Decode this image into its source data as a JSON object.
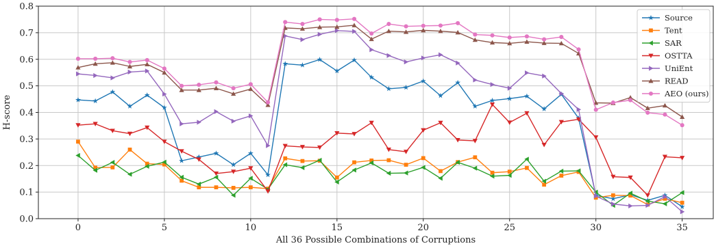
{
  "chart_data": {
    "type": "line",
    "title": "",
    "xlabel": "All 36 Possible Combinations of Corruptions",
    "ylabel": "H-score",
    "xlim": [
      -2.3,
      36.8
    ],
    "ylim": [
      0.0,
      0.8
    ],
    "xticks": [
      0,
      5,
      10,
      15,
      20,
      25,
      30,
      35
    ],
    "yticks": [
      0.0,
      0.1,
      0.2,
      0.3,
      0.4,
      0.5,
      0.6,
      0.7,
      0.8
    ],
    "grid": true,
    "legend_position": "top-right",
    "x": [
      0,
      1,
      2,
      3,
      4,
      5,
      6,
      7,
      8,
      9,
      10,
      11,
      12,
      13,
      14,
      15,
      16,
      17,
      18,
      19,
      20,
      21,
      22,
      23,
      24,
      25,
      26,
      27,
      28,
      29,
      30,
      31,
      32,
      33,
      34,
      35
    ],
    "series": [
      {
        "name": "Source",
        "color": "#1f77b4",
        "marker": "star",
        "values": [
          0.447,
          0.443,
          0.477,
          0.423,
          0.465,
          0.418,
          0.218,
          0.232,
          0.246,
          0.203,
          0.246,
          0.165,
          0.583,
          0.578,
          0.599,
          0.556,
          0.597,
          0.532,
          0.489,
          0.494,
          0.518,
          0.463,
          0.512,
          0.423,
          0.445,
          0.452,
          0.461,
          0.413,
          0.468,
          0.378,
          0.088,
          0.075,
          0.09,
          0.069,
          0.088,
          0.045
        ]
      },
      {
        "name": "Tent",
        "color": "#ff7f0e",
        "marker": "square",
        "values": [
          0.29,
          0.192,
          0.193,
          0.26,
          0.207,
          0.204,
          0.143,
          0.118,
          0.118,
          0.116,
          0.118,
          0.113,
          0.227,
          0.217,
          0.218,
          0.155,
          0.212,
          0.219,
          0.22,
          0.203,
          0.228,
          0.179,
          0.213,
          0.231,
          0.173,
          0.177,
          0.191,
          0.128,
          0.162,
          0.176,
          0.079,
          0.088,
          0.087,
          0.053,
          0.075,
          0.06
        ]
      },
      {
        "name": "SAR",
        "color": "#2ca02c",
        "marker": "triangle-left",
        "values": [
          0.238,
          0.182,
          0.212,
          0.167,
          0.197,
          0.213,
          0.156,
          0.13,
          0.156,
          0.088,
          0.152,
          0.111,
          0.203,
          0.192,
          0.22,
          0.138,
          0.183,
          0.21,
          0.171,
          0.172,
          0.193,
          0.152,
          0.212,
          0.19,
          0.16,
          0.163,
          0.224,
          0.141,
          0.179,
          0.18,
          0.1,
          0.05,
          0.096,
          0.066,
          0.056,
          0.098
        ]
      },
      {
        "name": "OSTTA",
        "color": "#d62728",
        "marker": "triangle-down",
        "values": [
          0.352,
          0.357,
          0.331,
          0.32,
          0.343,
          0.29,
          0.254,
          0.223,
          0.17,
          0.177,
          0.19,
          0.103,
          0.274,
          0.27,
          0.268,
          0.322,
          0.319,
          0.361,
          0.26,
          0.252,
          0.333,
          0.361,
          0.296,
          0.293,
          0.43,
          0.362,
          0.397,
          0.278,
          0.364,
          0.374,
          0.306,
          0.158,
          0.155,
          0.088,
          0.233,
          0.229
        ]
      },
      {
        "name": "UniEnt",
        "color": "#9467bd",
        "marker": "triangle-right",
        "values": [
          0.545,
          0.539,
          0.53,
          0.552,
          0.556,
          0.469,
          0.357,
          0.363,
          0.403,
          0.367,
          0.387,
          0.275,
          0.688,
          0.674,
          0.694,
          0.708,
          0.705,
          0.636,
          0.614,
          0.59,
          0.605,
          0.617,
          0.586,
          0.522,
          0.505,
          0.491,
          0.549,
          0.537,
          0.471,
          0.411,
          0.085,
          0.055,
          0.048,
          0.05,
          0.083,
          0.026
        ]
      },
      {
        "name": "READ",
        "color": "#8c564b",
        "marker": "triangle-up",
        "values": [
          0.569,
          0.583,
          0.587,
          0.573,
          0.581,
          0.55,
          0.484,
          0.484,
          0.491,
          0.47,
          0.488,
          0.428,
          0.718,
          0.715,
          0.721,
          0.722,
          0.728,
          0.676,
          0.706,
          0.703,
          0.709,
          0.706,
          0.701,
          0.673,
          0.663,
          0.66,
          0.666,
          0.661,
          0.66,
          0.622,
          0.436,
          0.435,
          0.456,
          0.416,
          0.426,
          0.383
        ]
      },
      {
        "name": "AEO (ours)",
        "color": "#e377c2",
        "marker": "circle",
        "values": [
          0.602,
          0.602,
          0.604,
          0.59,
          0.597,
          0.565,
          0.5,
          0.504,
          0.513,
          0.491,
          0.506,
          0.438,
          0.74,
          0.733,
          0.75,
          0.748,
          0.752,
          0.697,
          0.733,
          0.724,
          0.726,
          0.727,
          0.736,
          0.693,
          0.69,
          0.682,
          0.686,
          0.675,
          0.684,
          0.637,
          0.41,
          0.437,
          0.446,
          0.399,
          0.392,
          0.352
        ]
      }
    ]
  }
}
